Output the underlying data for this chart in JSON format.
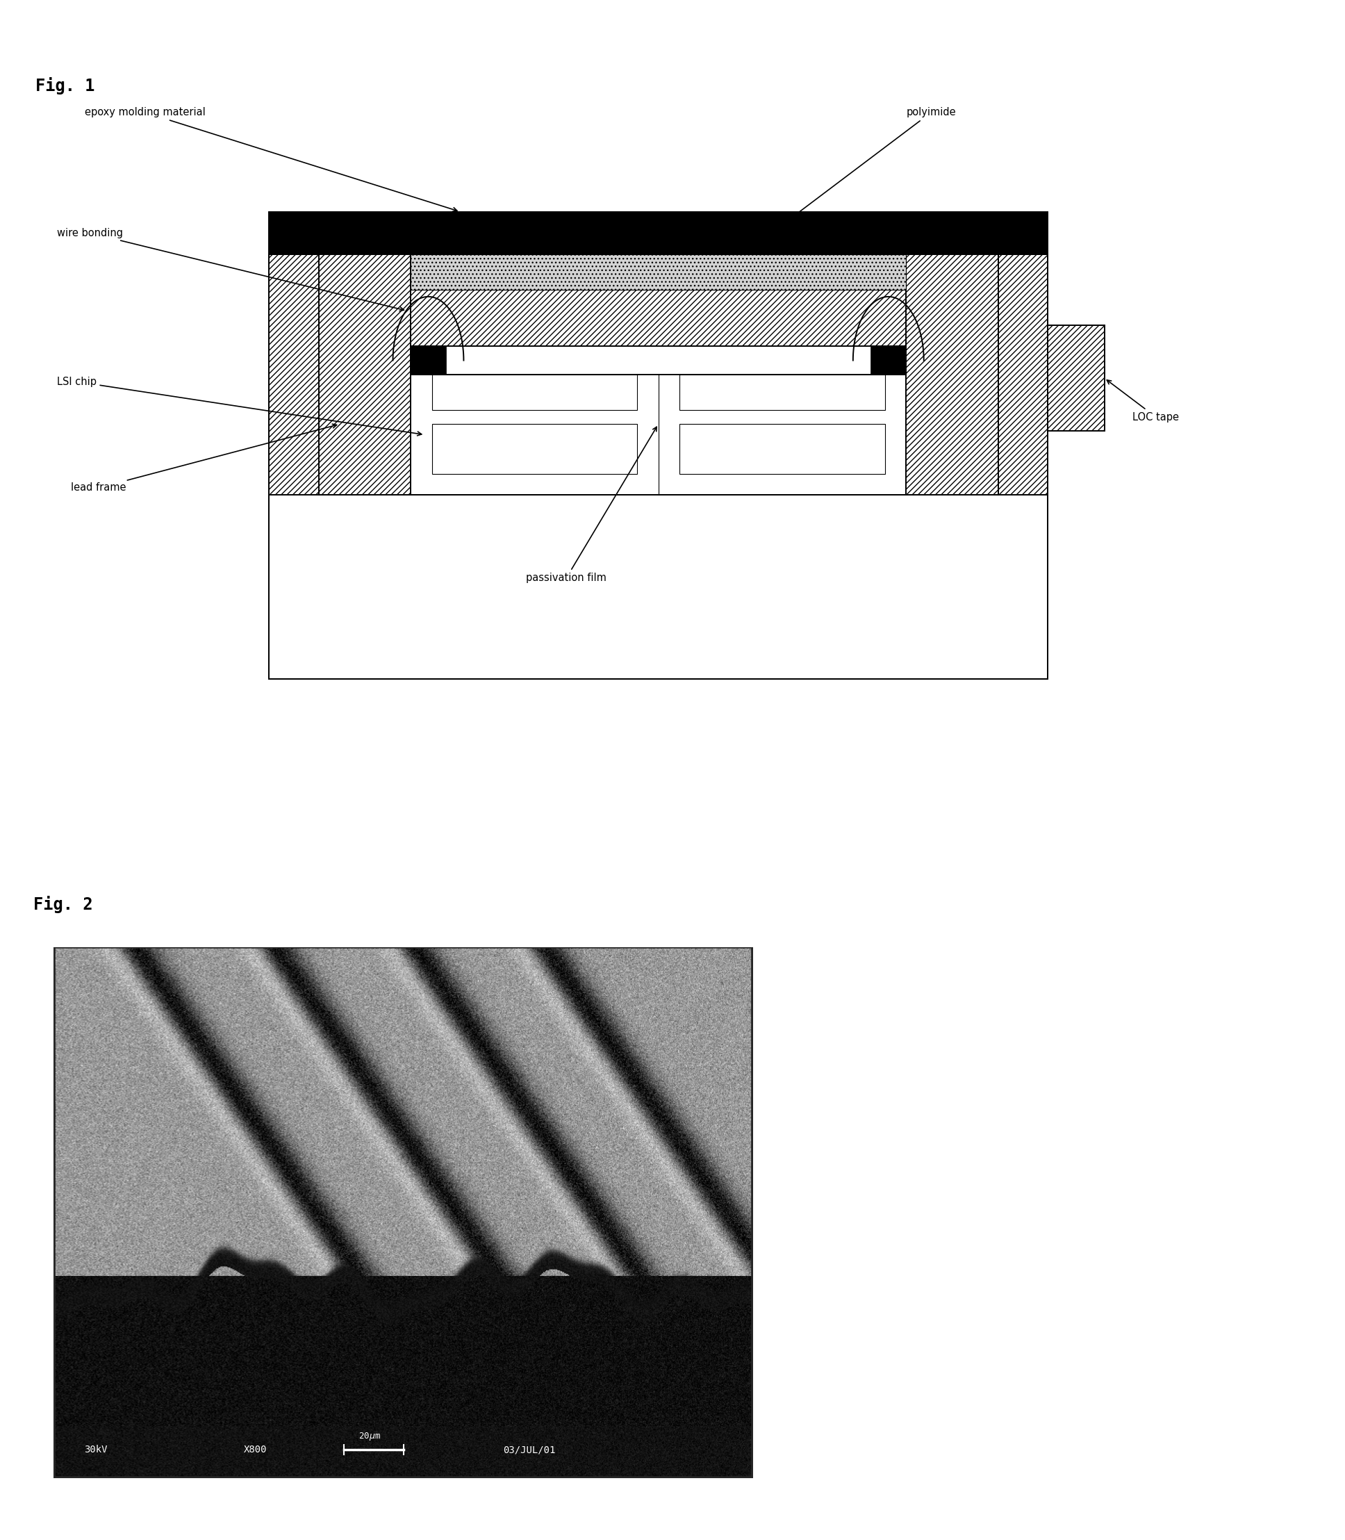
{
  "fig1_title": "Fig. 1",
  "fig2_title": "Fig. 2",
  "labels": {
    "epoxy_molding": "epoxy molding material",
    "wire_bonding": "wire bonding",
    "lsi_chip": "LSI chip",
    "lead_frame": "lead frame",
    "polyimide": "polyimide",
    "loc_tape": "LOC tape",
    "passivation_film": "passivation film"
  },
  "background": "#ffffff",
  "line_color": "#000000"
}
